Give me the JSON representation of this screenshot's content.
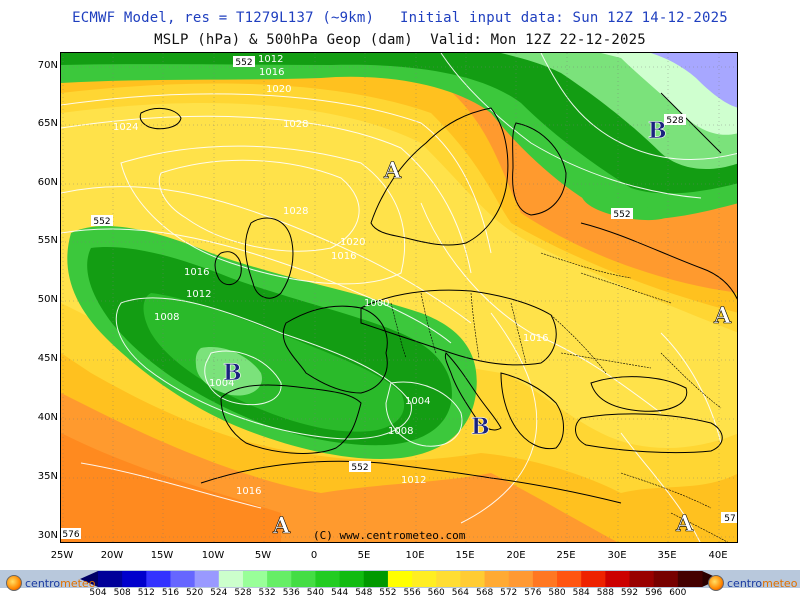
{
  "header": {
    "line1": "ECMWF Model, res = T1279L137 (~9km)   Initial input data: Sun 12Z 14-12-2025",
    "line2": "MSLP (hPa) & 500hPa Geop (dam)  Valid: Mon 12Z 22-12-2025"
  },
  "lat_labels": [
    "70N",
    "65N",
    "60N",
    "55N",
    "50N",
    "45N",
    "40N",
    "35N",
    "30N"
  ],
  "lon_labels": [
    "25W",
    "20W",
    "15W",
    "10W",
    "5W",
    "0",
    "5E",
    "10E",
    "15E",
    "20E",
    "25E",
    "30E",
    "35E",
    "40E"
  ],
  "pressure_centers": [
    {
      "letter": "A",
      "kind": "high",
      "color": "#ffffff"
    },
    {
      "letter": "A",
      "kind": "high",
      "color": "#ffffff"
    },
    {
      "letter": "A",
      "kind": "high",
      "color": "#ffffff"
    },
    {
      "letter": "A",
      "kind": "high",
      "color": "#ffffff"
    },
    {
      "letter": "B",
      "kind": "low",
      "color": "#1a237e"
    },
    {
      "letter": "B",
      "kind": "low",
      "color": "#1a237e"
    },
    {
      "letter": "B",
      "kind": "low",
      "color": "#1a237e"
    }
  ],
  "isobar_labels": [
    "1012",
    "1016",
    "1020",
    "1024",
    "1028",
    "1028",
    "1020",
    "1016",
    "1016",
    "1012",
    "1008",
    "1004",
    "1000",
    "1004",
    "1008",
    "1016",
    "1012",
    "1016"
  ],
  "geop_labels": [
    "552",
    "552",
    "552",
    "528",
    "552",
    "576",
    "57"
  ],
  "copyright": "(C)  www.centrometeo.com",
  "scale": {
    "values": [
      "504",
      "508",
      "512",
      "516",
      "520",
      "524",
      "528",
      "532",
      "536",
      "540",
      "544",
      "548",
      "552",
      "556",
      "560",
      "564",
      "568",
      "572",
      "576",
      "580",
      "584",
      "588",
      "592",
      "596",
      "600"
    ],
    "colors": [
      "#000099",
      "#0000cc",
      "#3333ff",
      "#6666ff",
      "#9999ff",
      "#ccffcc",
      "#99ff99",
      "#66ee66",
      "#44dd44",
      "#22cc22",
      "#11bb11",
      "#009900",
      "#ffff00",
      "#ffee22",
      "#ffdd33",
      "#ffcc33",
      "#ffaa33",
      "#ff9933",
      "#ff7722",
      "#ff5511",
      "#ee2200",
      "#cc0000",
      "#990000",
      "#770000",
      "#440000"
    ]
  },
  "logo": {
    "part1": "centro",
    "part2": "meteo"
  },
  "palette": {
    "ocean_orange": "#ff9a2e",
    "yellow": "#ffd21e",
    "light_yellow": "#ffe066",
    "green_dark": "#139d13",
    "green_mid": "#3cc83c",
    "green_light": "#7be27b",
    "violet": "#a7a7ff",
    "isobar": "#ffffff",
    "coast": "#000000"
  }
}
